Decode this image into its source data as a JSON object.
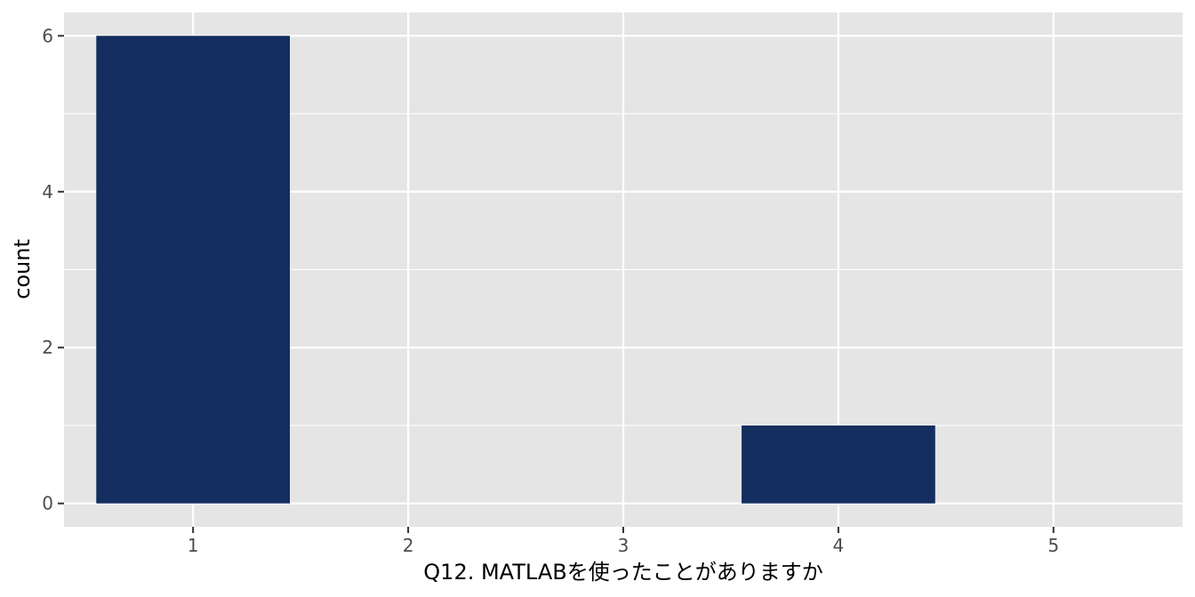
{
  "chart_data": {
    "type": "bar",
    "xlabel": "Q12. MATLABを使ったことがありますか",
    "ylabel": "count",
    "x_ticks": [
      1,
      2,
      3,
      4,
      5
    ],
    "y_ticks": [
      0,
      2,
      4,
      6
    ],
    "xlim": [
      0.4,
      5.6
    ],
    "ylim": [
      -0.3,
      6.3
    ],
    "bar_width": 0.9,
    "bars": [
      {
        "x": 1,
        "value": 6
      },
      {
        "x": 4,
        "value": 1
      }
    ],
    "grid": true,
    "colors": {
      "bar": "#132e5f",
      "panel": "#e5e5e5",
      "grid": "#ffffff",
      "tick": "#333333"
    }
  }
}
